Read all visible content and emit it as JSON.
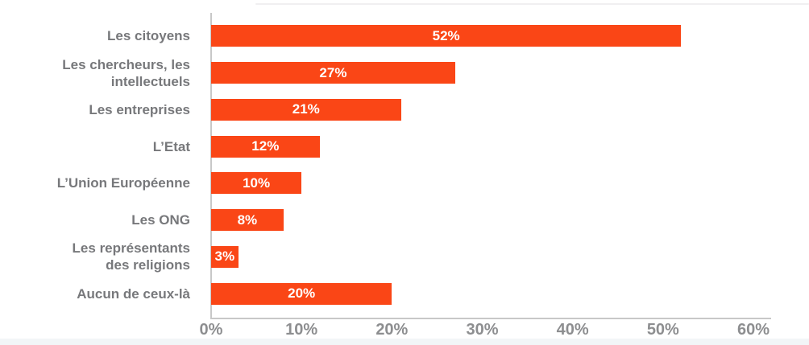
{
  "decorations": {
    "top_hairline_color": "#f0eff1",
    "bottom_band_color": "#f2f5f7"
  },
  "chart_data": {
    "type": "bar",
    "orientation": "horizontal",
    "title": "",
    "categories": [
      "Les citoyens",
      "Les chercheurs, les intellectuels",
      "Les entreprises",
      "L’Etat",
      "L’Union Européenne",
      "Les ONG",
      "Les représentants des religions",
      "Aucun de ceux-là"
    ],
    "label_lines": [
      [
        "Les citoyens"
      ],
      [
        "Les chercheurs, les",
        "intellectuels"
      ],
      [
        "Les entreprises"
      ],
      [
        "L’Etat"
      ],
      [
        "L’Union Européenne"
      ],
      [
        "Les ONG"
      ],
      [
        "Les représentants",
        "des religions"
      ],
      [
        "Aucun de ceux-là"
      ]
    ],
    "values": [
      52,
      27,
      21,
      12,
      10,
      8,
      3,
      20
    ],
    "value_labels": [
      "52%",
      "27%",
      "21%",
      "12%",
      "10%",
      "8%",
      "3%",
      "20%"
    ],
    "x_ticks": [
      "0%",
      "10%",
      "20%",
      "30%",
      "40%",
      "50%",
      "60%"
    ],
    "xlim": [
      0,
      60
    ],
    "grid": false,
    "legend": "none",
    "bar_color": "#FA4616",
    "bar_label_color": "#FFFFFF",
    "category_label_color": "#77787B",
    "tick_label_color": "#8D8E90",
    "axis_line_color": "#C8C8C8"
  }
}
